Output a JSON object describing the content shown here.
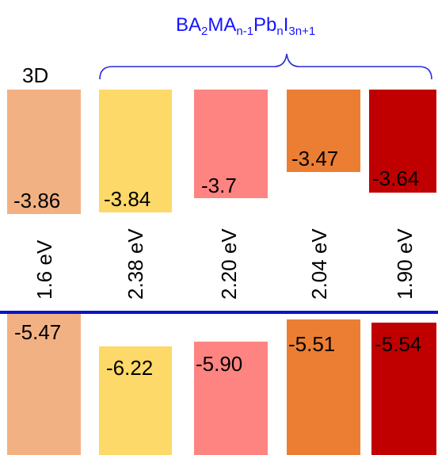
{
  "formula": {
    "base": "BA",
    "sub1": "2",
    "mid": "MA",
    "sub2": "n-1",
    "pb": "Pb",
    "sub3": "n",
    "i": "I",
    "sub4": "3n+1"
  },
  "label_3d": "3D",
  "columns": [
    {
      "key": "3d",
      "cbm": "-3.86",
      "vbm": "-5.47",
      "gap": "1.6 eV",
      "color": "#f2b183"
    },
    {
      "key": "n1",
      "cbm": "-3.84",
      "vbm": "-6.22",
      "gap": "2.38 eV",
      "color": "#fcd968"
    },
    {
      "key": "n2",
      "cbm": "-3.7",
      "vbm": "-5.90",
      "gap": "2.20 eV",
      "color": "#fd8480"
    },
    {
      "key": "n3",
      "cbm": "-3.47",
      "vbm": "-5.51",
      "gap": "2.04 eV",
      "color": "#ec7e34"
    },
    {
      "key": "n4",
      "cbm": "-3.64",
      "vbm": "-5.54",
      "gap": "1.90 eV",
      "color": "#c00000"
    }
  ],
  "colors": {
    "formula": "#1414ff",
    "brace": "#2a2ad8",
    "vbm_line": "#0a14c8"
  }
}
